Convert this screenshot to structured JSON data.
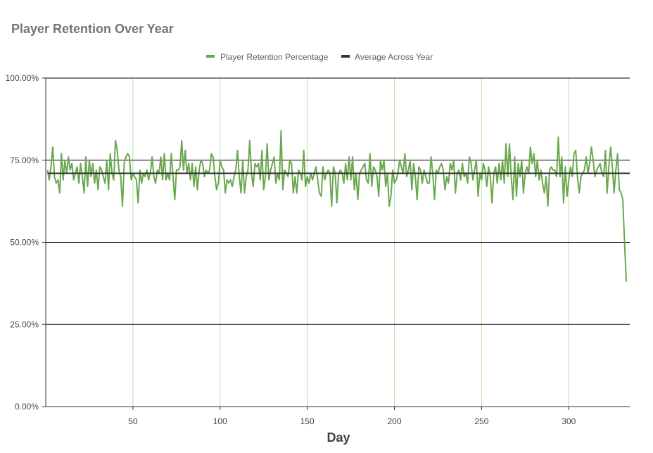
{
  "chart_data": {
    "type": "line",
    "title": "Player Retention Over Year",
    "xlabel": "Day",
    "ylabel": "",
    "xlim": [
      0,
      335
    ],
    "ylim": [
      0,
      1
    ],
    "x_ticks": [
      50,
      100,
      150,
      200,
      250,
      300
    ],
    "y_ticks": [
      0,
      0.25,
      0.5,
      0.75,
      1.0
    ],
    "y_tick_labels": [
      "0.00%",
      "25.00%",
      "50.00%",
      "75.00%",
      "100.00%"
    ],
    "grid": true,
    "legend": "top-center",
    "legend_entries": [
      "Player Retention Percentage",
      "Average Across Year"
    ],
    "series": [
      {
        "name": "Player Retention Percentage",
        "color": "#6aa84f",
        "x_start": 1,
        "x_step": 1,
        "values": [
          0.72,
          0.69,
          0.73,
          0.79,
          0.7,
          0.68,
          0.69,
          0.65,
          0.77,
          0.69,
          0.75,
          0.71,
          0.76,
          0.72,
          0.74,
          0.69,
          0.71,
          0.73,
          0.68,
          0.74,
          0.7,
          0.65,
          0.76,
          0.67,
          0.75,
          0.7,
          0.74,
          0.68,
          0.72,
          0.66,
          0.73,
          0.72,
          0.7,
          0.68,
          0.75,
          0.66,
          0.77,
          0.71,
          0.69,
          0.81,
          0.78,
          0.72,
          0.7,
          0.61,
          0.74,
          0.76,
          0.77,
          0.76,
          0.69,
          0.71,
          0.7,
          0.69,
          0.62,
          0.72,
          0.68,
          0.71,
          0.7,
          0.72,
          0.69,
          0.71,
          0.76,
          0.7,
          0.68,
          0.72,
          0.71,
          0.76,
          0.69,
          0.77,
          0.69,
          0.71,
          0.69,
          0.77,
          0.7,
          0.63,
          0.72,
          0.72,
          0.73,
          0.81,
          0.72,
          0.78,
          0.71,
          0.74,
          0.69,
          0.74,
          0.67,
          0.73,
          0.66,
          0.72,
          0.75,
          0.74,
          0.7,
          0.72,
          0.71,
          0.72,
          0.77,
          0.76,
          0.7,
          0.66,
          0.68,
          0.75,
          0.73,
          0.72,
          0.65,
          0.69,
          0.68,
          0.69,
          0.67,
          0.7,
          0.72,
          0.78,
          0.7,
          0.65,
          0.75,
          0.65,
          0.7,
          0.72,
          0.81,
          0.71,
          0.67,
          0.74,
          0.73,
          0.74,
          0.69,
          0.78,
          0.66,
          0.7,
          0.8,
          0.69,
          0.72,
          0.74,
          0.76,
          0.68,
          0.71,
          0.69,
          0.84,
          0.66,
          0.72,
          0.71,
          0.7,
          0.75,
          0.74,
          0.65,
          0.7,
          0.65,
          0.72,
          0.71,
          0.69,
          0.78,
          0.67,
          0.7,
          0.68,
          0.71,
          0.69,
          0.71,
          0.73,
          0.69,
          0.65,
          0.64,
          0.73,
          0.69,
          0.71,
          0.72,
          0.71,
          0.61,
          0.73,
          0.71,
          0.62,
          0.71,
          0.72,
          0.71,
          0.68,
          0.74,
          0.69,
          0.76,
          0.69,
          0.76,
          0.66,
          0.71,
          0.63,
          0.71,
          0.72,
          0.73,
          0.74,
          0.69,
          0.68,
          0.77,
          0.67,
          0.73,
          0.72,
          0.7,
          0.64,
          0.75,
          0.72,
          0.75,
          0.67,
          0.71,
          0.61,
          0.64,
          0.72,
          0.68,
          0.69,
          0.71,
          0.75,
          0.73,
          0.71,
          0.77,
          0.7,
          0.72,
          0.75,
          0.66,
          0.74,
          0.7,
          0.63,
          0.73,
          0.72,
          0.68,
          0.72,
          0.7,
          0.68,
          0.68,
          0.76,
          0.71,
          0.63,
          0.72,
          0.71,
          0.73,
          0.74,
          0.72,
          0.66,
          0.7,
          0.68,
          0.74,
          0.72,
          0.75,
          0.65,
          0.71,
          0.72,
          0.69,
          0.74,
          0.7,
          0.71,
          0.68,
          0.76,
          0.74,
          0.69,
          0.72,
          0.75,
          0.64,
          0.71,
          0.69,
          0.74,
          0.72,
          0.67,
          0.73,
          0.7,
          0.62,
          0.71,
          0.73,
          0.68,
          0.74,
          0.69,
          0.75,
          0.68,
          0.8,
          0.7,
          0.8,
          0.7,
          0.63,
          0.76,
          0.64,
          0.74,
          0.7,
          0.75,
          0.65,
          0.71,
          0.73,
          0.71,
          0.79,
          0.74,
          0.77,
          0.7,
          0.75,
          0.69,
          0.72,
          0.68,
          0.65,
          0.7,
          0.61,
          0.72,
          0.73,
          0.72,
          0.72,
          0.7,
          0.82,
          0.7,
          0.76,
          0.62,
          0.73,
          0.64,
          0.69,
          0.73,
          0.7,
          0.77,
          0.78,
          0.7,
          0.65,
          0.7,
          0.71,
          0.72,
          0.76,
          0.71,
          0.74,
          0.79,
          0.75,
          0.7,
          0.72,
          0.73,
          0.74,
          0.71,
          0.7,
          0.78,
          0.65,
          0.73,
          0.79,
          0.73,
          0.65,
          0.72,
          0.77,
          0.66,
          0.65,
          0.63,
          0.5,
          0.38
        ]
      },
      {
        "name": "Average Across Year",
        "color": "#333333",
        "x": [
          1,
          335
        ],
        "values": [
          0.71,
          0.71
        ]
      }
    ]
  }
}
